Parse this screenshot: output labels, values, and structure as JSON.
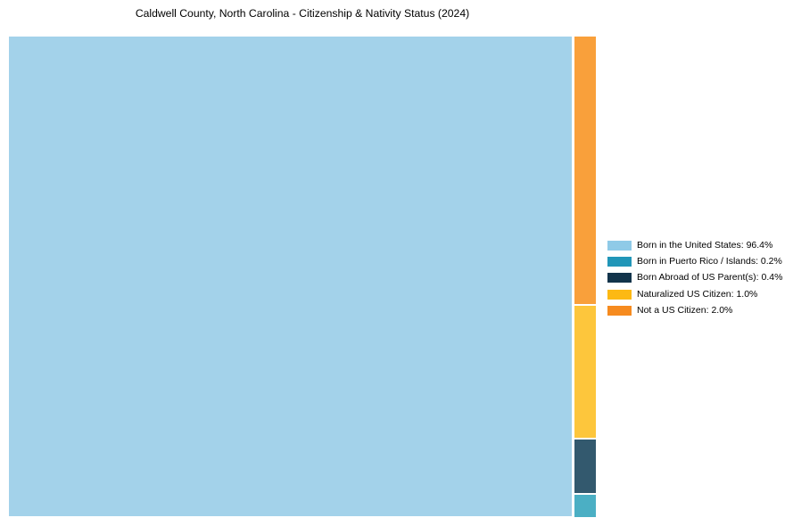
{
  "chart_data": {
    "type": "treemap",
    "title": "Caldwell County, North Carolina - Citizenship & Nativity Status (2024)",
    "categories": [
      "Born in the United States",
      "Born in Puerto Rico / Islands",
      "Born Abroad of US Parent(s)",
      "Naturalized US Citizen",
      "Not a US Citizen"
    ],
    "values": [
      96.4,
      0.2,
      0.4,
      1.0,
      2.0
    ],
    "unit": "%",
    "colors": [
      "#8FCAE7",
      "#2196B8",
      "#12344B",
      "#FDB913",
      "#F68B1F"
    ],
    "block_colors": [
      "#A3D2EA",
      "#4BAFC4",
      "#33596E",
      "#FDC63C",
      "#F9A03B"
    ],
    "layout_hints": {
      "axes": "none",
      "grid": false,
      "legend_position": "right",
      "big_block_share_of_width": 96.4,
      "side_column_order_top_to_bottom": [
        "Not a US Citizen",
        "Naturalized US Citizen",
        "Born Abroad of US Parent(s)",
        "Born in Puerto Rico / Islands"
      ]
    },
    "legend": {
      "items": [
        {
          "label": "Born in the United States: 96.4%",
          "color": "#8FCAE7"
        },
        {
          "label": "Born in Puerto Rico / Islands: 0.2%",
          "color": "#2196B8"
        },
        {
          "label": "Born Abroad of US Parent(s): 0.4%",
          "color": "#12344B"
        },
        {
          "label": "Naturalized US Citizen: 1.0%",
          "color": "#FDB913"
        },
        {
          "label": "Not a US Citizen: 2.0%",
          "color": "#F68B1F"
        }
      ]
    }
  }
}
